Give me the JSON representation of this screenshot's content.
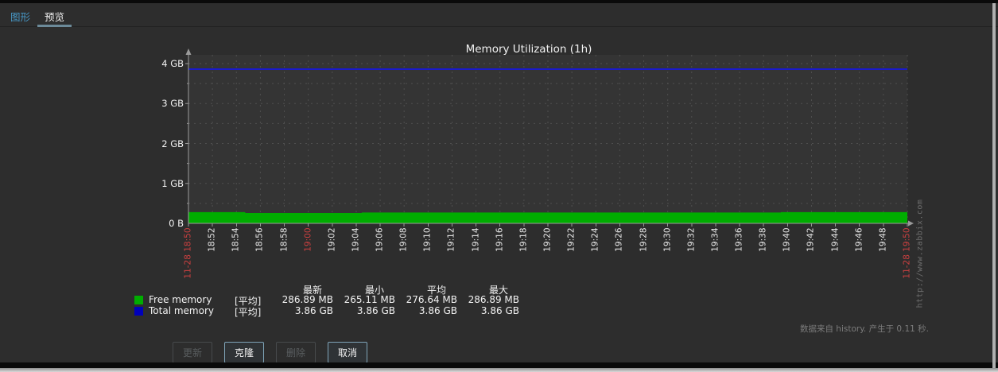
{
  "tabs": [
    {
      "name": "graph",
      "label": "图形",
      "active": false
    },
    {
      "name": "preview",
      "label": "预览",
      "active": true
    }
  ],
  "colors": {
    "link_blue": "#4796C4",
    "tab_underline": "#6C8A99",
    "tick_red": "#CC4040",
    "grid": "#4f4f4f",
    "axis": "#9a9a9a",
    "plot_bg": "#343434"
  },
  "chart_data": {
    "type": "area",
    "title": "Memory Utilization (1h)",
    "ylabel_ticks": [
      "4 GB",
      "3 GB",
      "2 GB",
      "1 GB",
      "0 B"
    ],
    "ylim_gb": [
      0,
      4
    ],
    "grid": {
      "h_step_gb": 0.5,
      "v_every_tick": true,
      "style": "dashed"
    },
    "x_ticks": [
      "11-28 18:50",
      "18:52",
      "18:54",
      "18:56",
      "18:58",
      "19:00",
      "19:02",
      "19:04",
      "19:06",
      "19:08",
      "19:10",
      "19:12",
      "19:14",
      "19:16",
      "19:18",
      "19:20",
      "19:22",
      "19:24",
      "19:26",
      "19:28",
      "19:30",
      "19:32",
      "19:34",
      "19:36",
      "19:38",
      "19:40",
      "19:42",
      "19:44",
      "19:46",
      "19:48",
      "11-28 19:50"
    ],
    "x_red_indices": [
      0,
      5,
      30
    ],
    "series": [
      {
        "name": "Free memory",
        "type": "area",
        "color": "#00AD00",
        "unit": "B",
        "steps": [
          {
            "from": 0.0,
            "to": 0.079,
            "mb": 286.89
          },
          {
            "from": 0.079,
            "to": 0.241,
            "mb": 265.11
          },
          {
            "from": 0.241,
            "to": 0.824,
            "mb": 276.64
          },
          {
            "from": 0.824,
            "to": 1.0,
            "mb": 286.89
          }
        ]
      },
      {
        "name": "Total memory",
        "type": "line",
        "color": "#1A1ACC",
        "gb": 3.86
      }
    ]
  },
  "legend": {
    "headers": [
      "最新",
      "最小",
      "平均",
      "最大"
    ],
    "rows": [
      {
        "name": "Free memory",
        "swatch": "#00AD00",
        "func": "[平均]",
        "values": [
          "286.89 MB",
          "265.11 MB",
          "276.64 MB",
          "286.89 MB"
        ]
      },
      {
        "name": "Total memory",
        "swatch": "#0000BB",
        "func": "[平均]",
        "values": [
          "3.86 GB",
          "3.86 GB",
          "3.86 GB",
          "3.86 GB"
        ]
      }
    ]
  },
  "watermark": "http://www.zabbix.com",
  "footer_status": "数据来自 history. 产生于 0.11 秒.",
  "buttons": [
    {
      "name": "update",
      "label": "更新",
      "enabled": false
    },
    {
      "name": "clone",
      "label": "克隆",
      "enabled": true
    },
    {
      "name": "delete",
      "label": "删除",
      "enabled": false
    },
    {
      "name": "cancel",
      "label": "取消",
      "enabled": true
    }
  ]
}
